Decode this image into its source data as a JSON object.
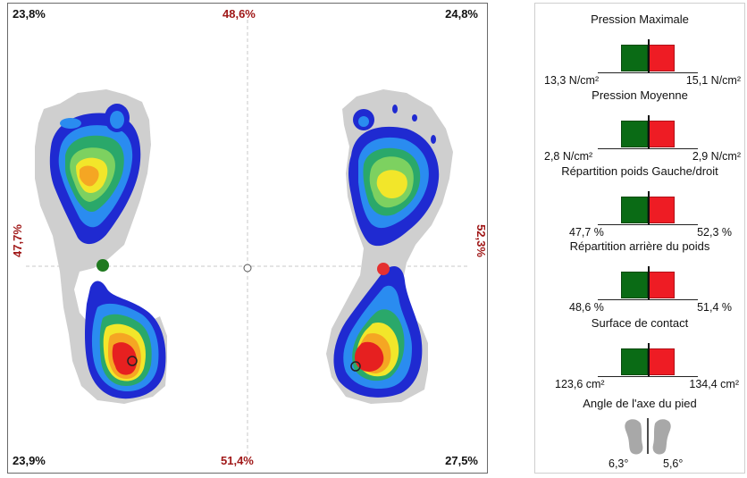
{
  "map": {
    "corners": {
      "top_left": "23,8%",
      "top_right": "24,8%",
      "bottom_left": "23,9%",
      "bottom_right": "27,5%"
    },
    "top_center": "48,6%",
    "bottom_center": "51,4%",
    "left_center": "47,7%",
    "right_center": "52,3%",
    "colors": {
      "center_left": "#1f7a1f",
      "center_right": "#e53030",
      "axis_text": "#a01818"
    }
  },
  "stats": {
    "metrics": [
      {
        "title": "Pression Maximale",
        "left": "13,3 N/cm²",
        "right": "15,1 N/cm²"
      },
      {
        "title": "Pression Moyenne",
        "left": "2,8 N/cm²",
        "right": "2,9 N/cm²"
      },
      {
        "title": "Répartition poids Gauche/droit",
        "left": "47,7 %",
        "right": "52,3 %"
      },
      {
        "title": "Répartition arrière du poids",
        "left": "48,6 %",
        "right": "51,4 %"
      },
      {
        "title": "Surface de contact",
        "left": "123,6 cm²",
        "right": "134,4 cm²"
      }
    ],
    "angle": {
      "title": "Angle de l'axe du pied",
      "left": "6,3°",
      "right": "5,6°"
    },
    "colors": {
      "left_bar": "#0a6b15",
      "right_bar": "#ee1c24"
    }
  }
}
